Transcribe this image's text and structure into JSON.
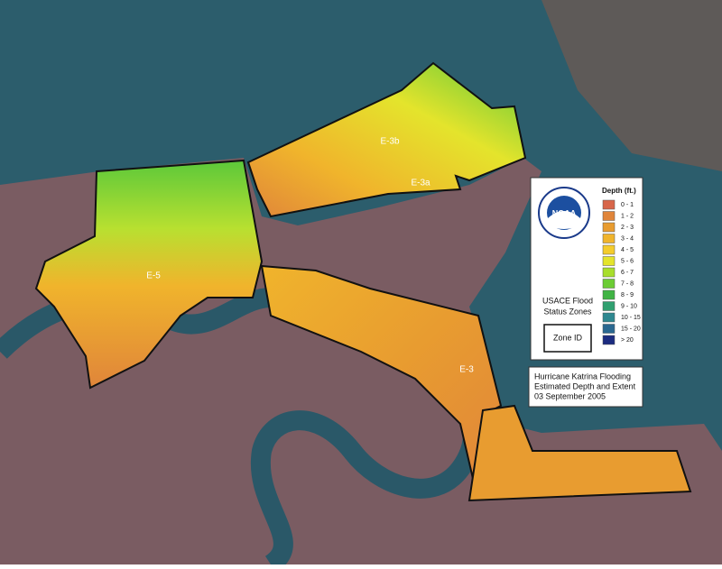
{
  "map": {
    "zones": [
      {
        "label": "E-5"
      },
      {
        "label": "E-3b"
      },
      {
        "label": "E-3a"
      },
      {
        "label": "E-3"
      }
    ],
    "logo": "NOAA",
    "legend": {
      "title": "Depth (ft.)",
      "items": [
        {
          "label": "0 - 1",
          "color": "#d8664a"
        },
        {
          "label": "1 - 2",
          "color": "#e0853a"
        },
        {
          "label": "2 - 3",
          "color": "#e89c30"
        },
        {
          "label": "3 - 4",
          "color": "#f0b42c"
        },
        {
          "label": "4 - 5",
          "color": "#f4cc2c"
        },
        {
          "label": "5 - 6",
          "color": "#e4e42c"
        },
        {
          "label": "6 - 7",
          "color": "#a8de2c"
        },
        {
          "label": "7 - 8",
          "color": "#6ccc34"
        },
        {
          "label": "8 - 9",
          "color": "#40b444"
        },
        {
          "label": "9 - 10",
          "color": "#30a070"
        },
        {
          "label": "10 - 15",
          "color": "#2e8890"
        },
        {
          "label": "15 - 20",
          "color": "#2a6890"
        },
        {
          "label": "> 20",
          "color": "#1c2c80"
        }
      ]
    },
    "zone_legend": {
      "title": [
        "USACE Flood",
        "Status Zones"
      ],
      "sample": "Zone ID"
    },
    "caption": [
      "Hurricane Katrina Flooding",
      "Estimated Depth and Extent",
      "03 September 2005"
    ]
  }
}
